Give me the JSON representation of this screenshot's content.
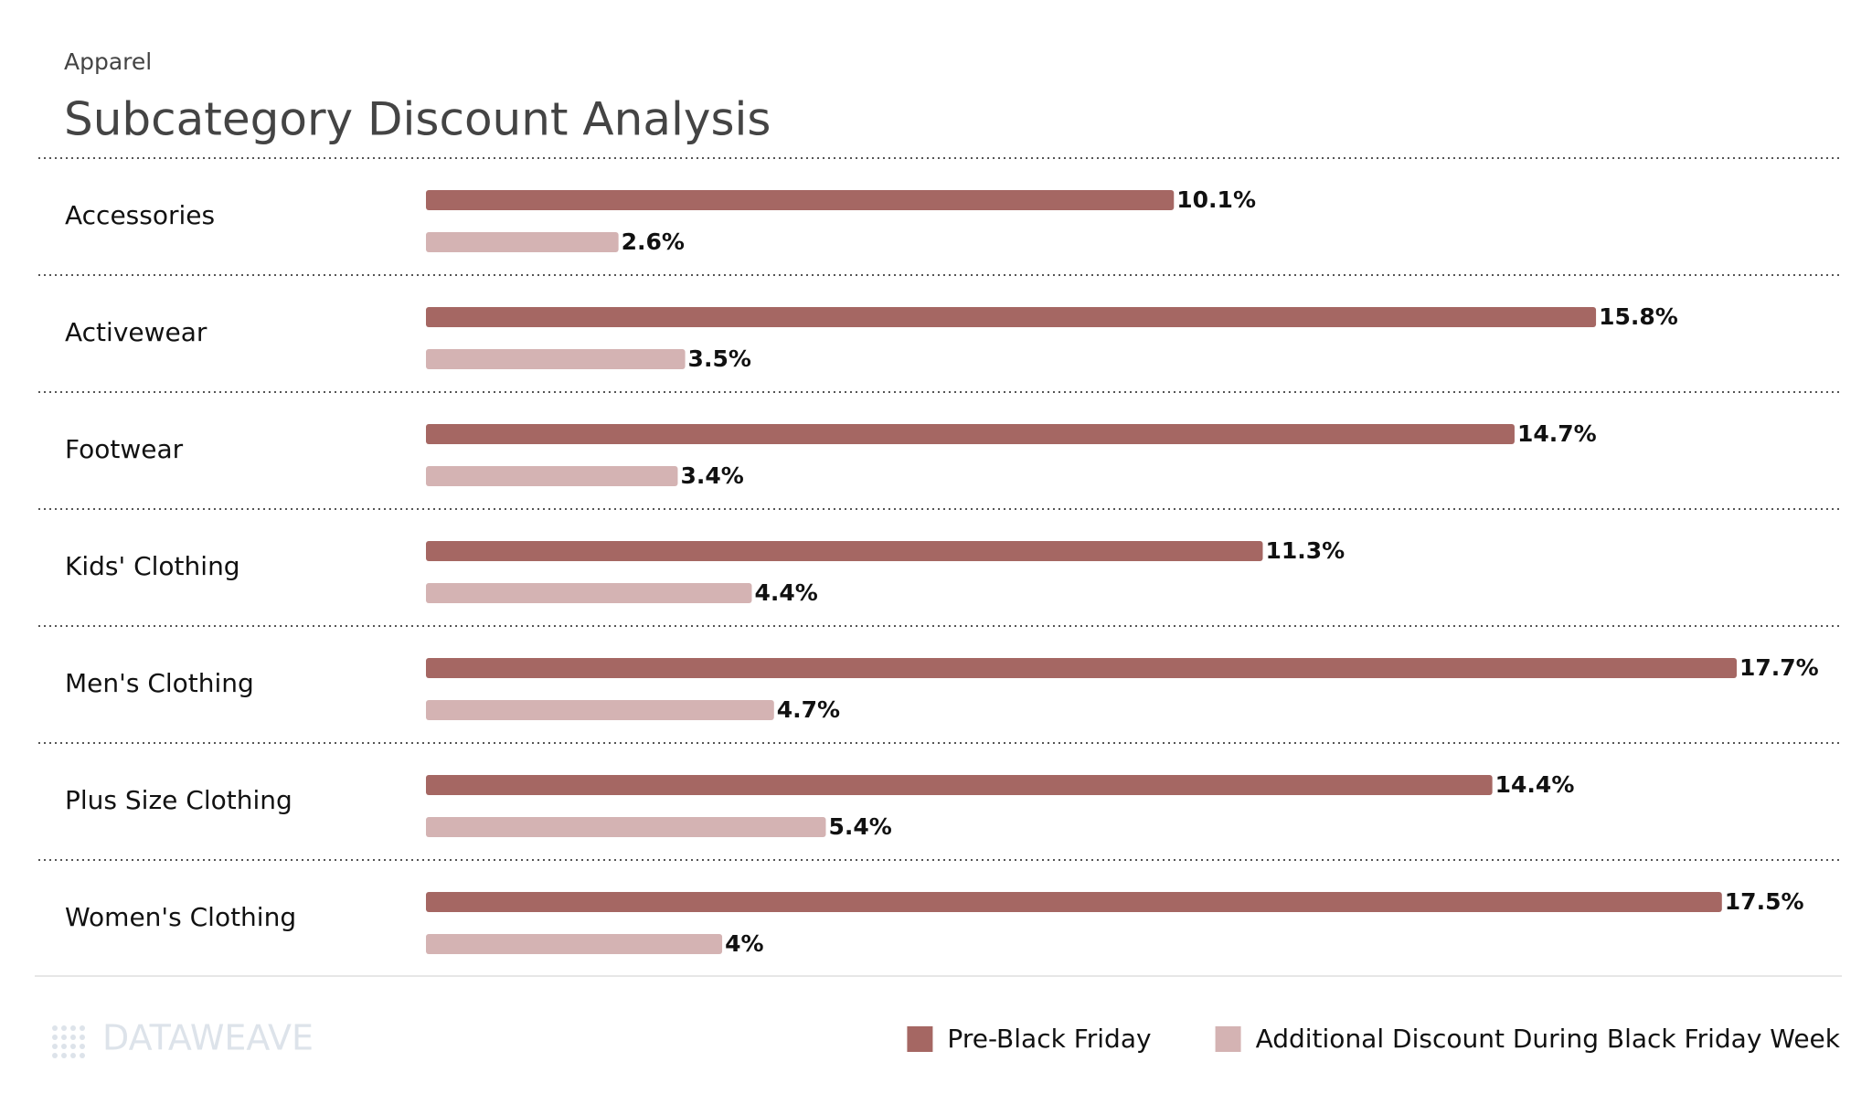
{
  "chart_data": {
    "type": "bar",
    "orientation": "horizontal",
    "subtitle": "Apparel",
    "title": "Subcategory Discount Analysis",
    "categories": [
      "Accessories",
      "Activewear",
      "Footwear",
      "Kids' Clothing",
      "Men's Clothing",
      "Plus Size Clothing",
      "Women's Clothing"
    ],
    "series": [
      {
        "name": "Pre-Black Friday",
        "color": "#a56763",
        "values": [
          10.1,
          15.8,
          14.7,
          11.3,
          17.7,
          14.4,
          17.5
        ],
        "value_labels": [
          "10.1%",
          "15.8%",
          "14.7%",
          "11.3%",
          "17.7%",
          "14.4%",
          "17.5%"
        ]
      },
      {
        "name": "Additional Discount During Black Friday Week",
        "color": "#d4b3b3",
        "values": [
          2.6,
          3.5,
          3.4,
          4.4,
          4.7,
          5.4,
          4
        ],
        "value_labels": [
          "2.6%",
          "3.5%",
          "3.4%",
          "4.4%",
          "4.7%",
          "5.4%",
          "4%"
        ]
      }
    ],
    "legend": "bottom-right",
    "branding": "DATAWEAVE"
  }
}
